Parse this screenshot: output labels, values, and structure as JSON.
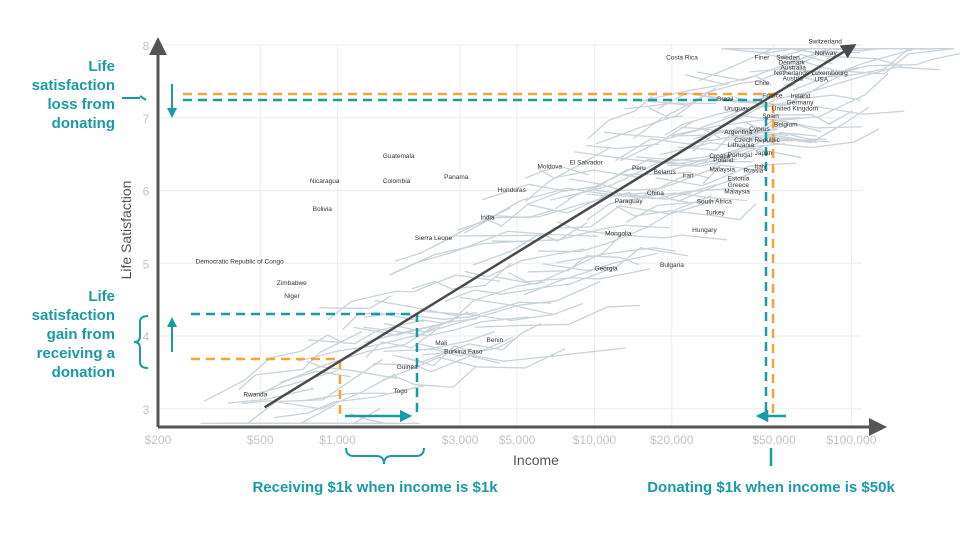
{
  "chart_data": {
    "type": "line",
    "title": "",
    "xlabel": "Income",
    "ylabel": "Life Satisfaction",
    "x_scale": "log",
    "xlim": [
      200,
      110000
    ],
    "ylim": [
      2.75,
      8
    ],
    "x_ticks": [
      {
        "value": 200,
        "label": "$200"
      },
      {
        "value": 500,
        "label": "$500"
      },
      {
        "value": 1000,
        "label": "$1,000"
      },
      {
        "value": 3000,
        "label": "$3,000"
      },
      {
        "value": 5000,
        "label": "$5,000"
      },
      {
        "value": 10000,
        "label": "$10,000"
      },
      {
        "value": 20000,
        "label": "$20,000"
      },
      {
        "value": 50000,
        "label": "$50,000"
      },
      {
        "value": 100000,
        "label": "$100,000"
      }
    ],
    "y_ticks": [
      {
        "value": 3,
        "label": "3"
      },
      {
        "value": 4,
        "label": "4"
      },
      {
        "value": 5,
        "label": "5"
      },
      {
        "value": 6,
        "label": "6"
      },
      {
        "value": 7,
        "label": "7"
      },
      {
        "value": 8,
        "label": "8"
      }
    ],
    "trend_line": {
      "x": [
        520,
        100000
      ],
      "y": [
        3.02,
        7.97
      ]
    },
    "countries": [
      {
        "name": "Costa Rica",
        "x": 19000,
        "y": 7.8
      },
      {
        "name": "Switzerland",
        "x": 68000,
        "y": 8.02
      },
      {
        "name": "Norway",
        "x": 72000,
        "y": 7.86
      },
      {
        "name": "Sweden",
        "x": 51000,
        "y": 7.8
      },
      {
        "name": "Denmark",
        "x": 52000,
        "y": 7.73
      },
      {
        "name": "Finer",
        "x": 42000,
        "y": 7.8
      },
      {
        "name": "Australia",
        "x": 53000,
        "y": 7.66
      },
      {
        "name": "Netherlands",
        "x": 50000,
        "y": 7.59
      },
      {
        "name": "Luxembourg",
        "x": 70000,
        "y": 7.59
      },
      {
        "name": "Austria",
        "x": 54000,
        "y": 7.51
      },
      {
        "name": "USA",
        "x": 72000,
        "y": 7.5
      },
      {
        "name": "Chile",
        "x": 42000,
        "y": 7.45
      },
      {
        "name": "France",
        "x": 45000,
        "y": 7.28
      },
      {
        "name": "Ireland",
        "x": 58000,
        "y": 7.27
      },
      {
        "name": "Germany",
        "x": 56000,
        "y": 7.18
      },
      {
        "name": "United Kingdom",
        "x": 49000,
        "y": 7.1
      },
      {
        "name": "Brazil",
        "x": 30000,
        "y": 7.23
      },
      {
        "name": "Uruguay",
        "x": 32000,
        "y": 7.1
      },
      {
        "name": "Spain",
        "x": 45000,
        "y": 7.0
      },
      {
        "name": "Belgium",
        "x": 50000,
        "y": 6.88
      },
      {
        "name": "Cyprus",
        "x": 40000,
        "y": 6.82
      },
      {
        "name": "Argentina",
        "x": 32000,
        "y": 6.78
      },
      {
        "name": "Czech Republic",
        "x": 35000,
        "y": 6.67
      },
      {
        "name": "Lithuania",
        "x": 33000,
        "y": 6.6
      },
      {
        "name": "Japan",
        "x": 42000,
        "y": 6.49
      },
      {
        "name": "Croatia",
        "x": 28000,
        "y": 6.45
      },
      {
        "name": "Portugal",
        "x": 33000,
        "y": 6.46
      },
      {
        "name": "Poland",
        "x": 29000,
        "y": 6.39
      },
      {
        "name": "Italy",
        "x": 42000,
        "y": 6.3
      },
      {
        "name": "Russia",
        "x": 38000,
        "y": 6.25
      },
      {
        "name": "Estonia",
        "x": 33000,
        "y": 6.14
      },
      {
        "name": "Greece",
        "x": 33000,
        "y": 6.05
      },
      {
        "name": "Malaysia",
        "x": 28000,
        "y": 6.26
      },
      {
        "name": "Malaysia",
        "x": 32000,
        "y": 5.96
      },
      {
        "name": "Iran",
        "x": 22000,
        "y": 6.18
      },
      {
        "name": "Peru",
        "x": 14000,
        "y": 6.28
      },
      {
        "name": "Belarus",
        "x": 17000,
        "y": 6.23
      },
      {
        "name": "El Salvador",
        "x": 8000,
        "y": 6.36
      },
      {
        "name": "Moldova",
        "x": 6000,
        "y": 6.3
      },
      {
        "name": "Honduras",
        "x": 4200,
        "y": 5.98
      },
      {
        "name": "China",
        "x": 16000,
        "y": 5.94
      },
      {
        "name": "Paraguay",
        "x": 12000,
        "y": 5.83
      },
      {
        "name": "South Africa",
        "x": 25000,
        "y": 5.82
      },
      {
        "name": "Turkey",
        "x": 27000,
        "y": 5.67
      },
      {
        "name": "India",
        "x": 3600,
        "y": 5.6
      },
      {
        "name": "Hungary",
        "x": 24000,
        "y": 5.43
      },
      {
        "name": "Mongolia",
        "x": 11000,
        "y": 5.38
      },
      {
        "name": "Bulgaria",
        "x": 18000,
        "y": 4.95
      },
      {
        "name": "Georgia",
        "x": 10000,
        "y": 4.9
      },
      {
        "name": "Guatemala",
        "x": 1500,
        "y": 6.45
      },
      {
        "name": "Nicaragua",
        "x": 780,
        "y": 6.1
      },
      {
        "name": "Colombia",
        "x": 1500,
        "y": 6.1
      },
      {
        "name": "Panama",
        "x": 2600,
        "y": 6.16
      },
      {
        "name": "Bolivia",
        "x": 800,
        "y": 5.72
      },
      {
        "name": "Sierra Leone",
        "x": 2000,
        "y": 5.32
      },
      {
        "name": "Democratic Republic of Congo",
        "x": 280,
        "y": 5.0
      },
      {
        "name": "Zimbabwe",
        "x": 580,
        "y": 4.7
      },
      {
        "name": "Niger",
        "x": 620,
        "y": 4.52
      },
      {
        "name": "Benin",
        "x": 3800,
        "y": 3.92
      },
      {
        "name": "Mali",
        "x": 2400,
        "y": 3.88
      },
      {
        "name": "Burkina Faso",
        "x": 2600,
        "y": 3.76
      },
      {
        "name": "Guinea",
        "x": 1700,
        "y": 3.55
      },
      {
        "name": "Togo",
        "x": 1650,
        "y": 3.22
      },
      {
        "name": "Rwanda",
        "x": 430,
        "y": 3.17
      }
    ]
  },
  "annotations": {
    "loss_label": "Life\nsatisfaction\nloss from\ndonating",
    "gain_label": "Life\nsatisfaction\ngain from\nreceiving a\ndonation",
    "receiving_caption": "Receiving $1k when income is $1k",
    "donating_caption": "Donating $1k when income is $50k"
  },
  "colors": {
    "teal": "#1a9ba4",
    "orange": "#f5a533",
    "axis": "#555555",
    "trend": "#4a4a4a",
    "background_lines": "#c8d3da"
  }
}
